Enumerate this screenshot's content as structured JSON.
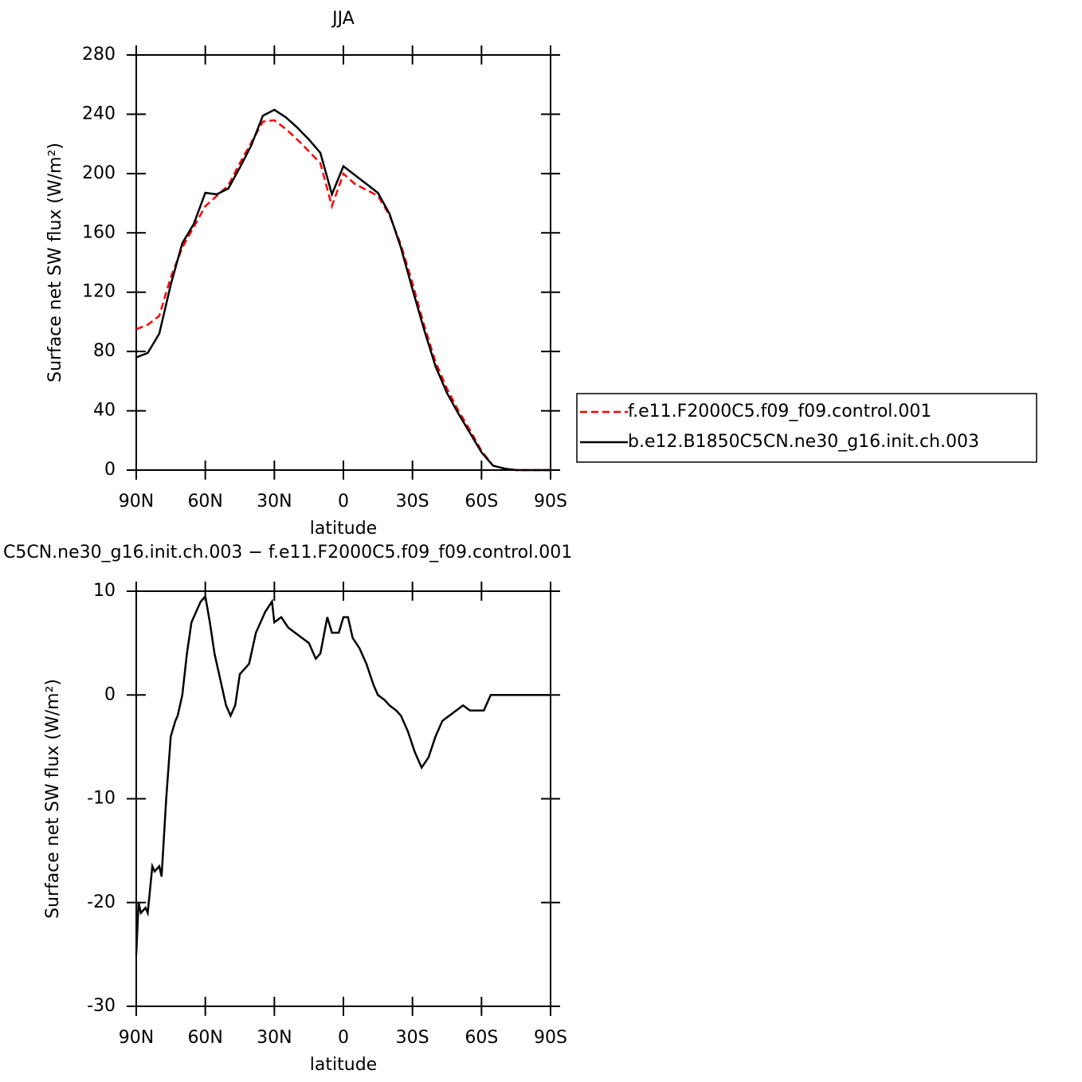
{
  "chart_data": [
    {
      "type": "line",
      "title": "JJA",
      "xlabel": "latitude",
      "ylabel": "Surface net SW flux (W/m²)",
      "xlim": [
        90,
        -90
      ],
      "xticks": [
        {
          "value": 90,
          "label": "90N"
        },
        {
          "value": 60,
          "label": "60N"
        },
        {
          "value": 30,
          "label": "30N"
        },
        0,
        {
          "value": -30,
          "label": "30S"
        },
        {
          "value": -60,
          "label": "60S"
        },
        {
          "value": -90,
          "label": "90S"
        }
      ],
      "ylim": [
        0,
        280
      ],
      "yticks": [
        0,
        40,
        80,
        120,
        160,
        200,
        240,
        280
      ],
      "legend": "outside right",
      "x": [
        90,
        85,
        80,
        75,
        70,
        65,
        60,
        55,
        50,
        45,
        40,
        35,
        30,
        25,
        20,
        15,
        10,
        5,
        0,
        -5,
        -10,
        -15,
        -20,
        -25,
        -30,
        -35,
        -40,
        -45,
        -50,
        -55,
        -60,
        -65,
        -70,
        -75,
        -80,
        -85,
        -90
      ],
      "series": [
        {
          "name": "f.e11.F2000C5.f09_f09.control.001",
          "color": "#ff0000",
          "style": "dashed",
          "values": [
            95,
            98,
            104,
            130,
            150,
            164,
            178,
            185,
            192,
            207,
            221,
            235,
            236,
            230,
            223,
            215,
            207,
            178,
            200,
            193,
            189,
            185,
            172,
            152,
            126,
            98,
            73,
            55,
            40,
            27,
            13,
            3,
            1,
            0,
            0,
            0,
            0
          ]
        },
        {
          "name": "b.e12.B1850C5CN.ne30_g16.init.ch.003",
          "color": "#000000",
          "style": "solid",
          "values": [
            76,
            79,
            92,
            125,
            153,
            166,
            187,
            186,
            190,
            204,
            219,
            239,
            243,
            238,
            231,
            223,
            214,
            186,
            205,
            199,
            193,
            187,
            173,
            150,
            122,
            95,
            70,
            52,
            38,
            25,
            12,
            3,
            1,
            0,
            0,
            0,
            0
          ]
        }
      ]
    },
    {
      "type": "line",
      "title": "C5CN.ne30_g16.init.ch.003 − f.e11.F2000C5.f09_f09.control.001",
      "xlabel": "latitude",
      "ylabel": "Surface net SW flux (W/m²)",
      "xlim": [
        90,
        -90
      ],
      "xticks": [
        {
          "value": 90,
          "label": "90N"
        },
        {
          "value": 60,
          "label": "60N"
        },
        {
          "value": 30,
          "label": "30N"
        },
        0,
        {
          "value": -30,
          "label": "30S"
        },
        {
          "value": -60,
          "label": "60S"
        },
        {
          "value": -90,
          "label": "90S"
        }
      ],
      "ylim": [
        -30,
        10
      ],
      "yticks": [
        -30,
        -20,
        -10,
        0,
        10
      ],
      "x": [
        90,
        89,
        88,
        86,
        85,
        83,
        82,
        80,
        79,
        77,
        75,
        73,
        72,
        70,
        68,
        66,
        64,
        62,
        60,
        58,
        56,
        53,
        51,
        49,
        47,
        45,
        43,
        41,
        38,
        36,
        34,
        31,
        30,
        27,
        24,
        21,
        18,
        15,
        12,
        10,
        7,
        5,
        2,
        0,
        -2,
        -4,
        -7,
        -10,
        -13,
        -15,
        -18,
        -20,
        -23,
        -25,
        -28,
        -31,
        -34,
        -37,
        -40,
        -43,
        -46,
        -49,
        -52,
        -55,
        -58,
        -61,
        -64,
        -67,
        -70,
        -80,
        -90
      ],
      "series": [
        {
          "name": "b.e12.B1850C5CN.ne30_g16.init.ch.003",
          "color": "#000000",
          "style": "solid",
          "values": [
            -25,
            -20,
            -21,
            -20.5,
            -21,
            -16.5,
            -17,
            -16.5,
            -17.5,
            -10,
            -4,
            -2.5,
            -2,
            0,
            4,
            7,
            8,
            9,
            9.5,
            7,
            4,
            1,
            -1,
            -2,
            -1,
            2,
            2.5,
            3,
            6,
            7,
            8,
            9,
            7,
            7.5,
            6.5,
            6,
            5.5,
            5,
            3.5,
            4,
            7.5,
            6,
            6,
            7.5,
            7.5,
            5.5,
            4.5,
            3,
            1,
            0,
            -0.5,
            -1,
            -1.5,
            -2,
            -3.5,
            -5.5,
            -7,
            -6,
            -4,
            -2.5,
            -2,
            -1.5,
            -1,
            -1.5,
            -1.5,
            -1.5,
            0,
            0,
            0,
            0,
            0
          ]
        }
      ]
    }
  ]
}
